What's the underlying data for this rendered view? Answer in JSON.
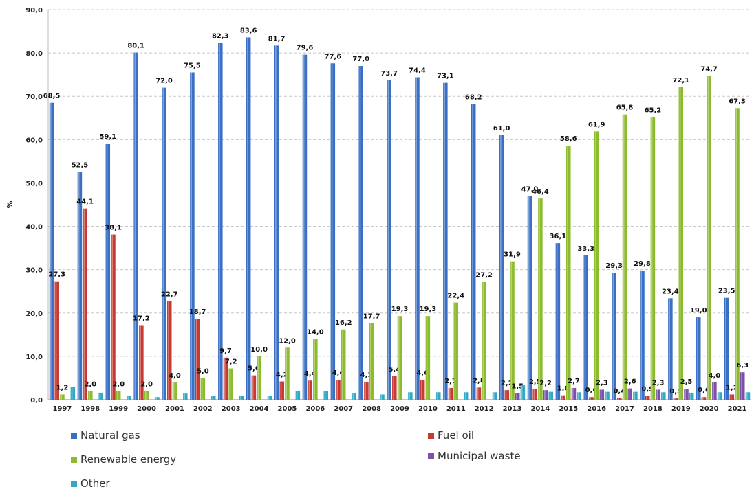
{
  "chart_data": {
    "type": "bar",
    "categories": [
      "1997",
      "1998",
      "1999",
      "2000",
      "2001",
      "2002",
      "2003",
      "2004",
      "2005",
      "2006",
      "2007",
      "2008",
      "2009",
      "2010",
      "2011",
      "2012",
      "2013",
      "2014",
      "2015",
      "2016",
      "2017",
      "2018",
      "2019",
      "2020",
      "2021"
    ],
    "series": [
      {
        "name": "Natural gas",
        "color": "#3a6fc4",
        "values": [
          68.5,
          52.5,
          59.1,
          80.1,
          72.0,
          75.5,
          82.3,
          83.6,
          81.7,
          79.6,
          77.6,
          77.0,
          73.7,
          74.4,
          73.1,
          68.2,
          61.0,
          47.0,
          36.1,
          33.3,
          29.3,
          29.8,
          23.4,
          19.0,
          23.5
        ],
        "labels": [
          "68,5",
          "52,5",
          "59,1",
          "80,1",
          "72,0",
          "75,5",
          "82,3",
          "83,6",
          "81,7",
          "79,6",
          "77,6",
          "77,0",
          "73,7",
          "74,4",
          "73,1",
          "68,2",
          "61,0",
          "47,0",
          "36,1",
          "33,3",
          "29,3",
          "29,8",
          "23,4",
          "19,0",
          "23,5"
        ]
      },
      {
        "name": "Fuel oil",
        "color": "#c63a32",
        "values": [
          27.3,
          44.1,
          38.1,
          17.2,
          22.7,
          18.7,
          9.7,
          5.6,
          4.2,
          4.4,
          4.6,
          4.1,
          5.4,
          4.6,
          2.7,
          2.8,
          2.2,
          2.5,
          1.0,
          0.6,
          0.4,
          0.9,
          0.3,
          0.6,
          1.2
        ],
        "labels": [
          "27,3",
          "44,1",
          "38,1",
          "17,2",
          "22,7",
          "18,7",
          "9,7",
          "5,6",
          "4,2",
          "4,4",
          "4,6",
          "4,1",
          "5,4",
          "4,6",
          "2,7",
          "2,8",
          "2,2",
          "2,5",
          "1,0",
          "0,6",
          "0,4",
          "0,9",
          "0,3",
          "0,6",
          "1,2"
        ]
      },
      {
        "name": "Renewable energy",
        "color": "#8dbb2e",
        "values": [
          1.2,
          2.0,
          2.0,
          2.0,
          4.0,
          5.0,
          7.2,
          10.0,
          12.0,
          14.0,
          16.2,
          17.7,
          19.3,
          19.3,
          22.4,
          27.2,
          31.9,
          46.4,
          58.6,
          61.9,
          65.8,
          65.2,
          72.1,
          74.7,
          67.3
        ],
        "labels": [
          "1,2",
          "2,0",
          "2,0",
          "2,0",
          "4,0",
          "5,0",
          "7,2",
          "10,0",
          "12,0",
          "14,0",
          "16,2",
          "17,7",
          "19,3",
          "19,3",
          "22,4",
          "27,2",
          "31,9",
          "46,4",
          "58,6",
          "61,9",
          "65,8",
          "65,2",
          "72,1",
          "74,7",
          "67,3"
        ]
      },
      {
        "name": "Municipal waste",
        "color": "#7d4fa8",
        "values": [
          0,
          0,
          0,
          0,
          0,
          0,
          0,
          0,
          0,
          0,
          0,
          0,
          0,
          0,
          0,
          0,
          1.5,
          2.2,
          2.7,
          2.3,
          2.6,
          2.3,
          2.5,
          4.0,
          6.3
        ],
        "labels": [
          "",
          "",
          "",
          "",
          "",
          "",
          "",
          "",
          "",
          "",
          "",
          "",
          "",
          "",
          "",
          "",
          "1,5",
          "2,2",
          "2,7",
          "2,3",
          "2,6",
          "2,3",
          "2,5",
          "4,0",
          "6,3"
        ]
      },
      {
        "name": "Other",
        "color": "#2fa9c6",
        "values": [
          3.0,
          1.6,
          0.8,
          0.6,
          1.4,
          0.8,
          0.8,
          0.8,
          2.0,
          2.0,
          1.5,
          1.2,
          1.7,
          1.7,
          1.7,
          1.7,
          3.3,
          1.8,
          1.7,
          1.8,
          1.8,
          1.7,
          1.6,
          1.7,
          1.7
        ],
        "labels": [
          "",
          "",
          "",
          "",
          "",
          "",
          "",
          "",
          "",
          "",
          "",
          "",
          "",
          "",
          "",
          "",
          "",
          "",
          "",
          "",
          "",
          "",
          "",
          "",
          ""
        ]
      }
    ],
    "ylabel": "%",
    "ylim": [
      0,
      90
    ],
    "yticks": [
      "0,0",
      "10,0",
      "20,0",
      "30,0",
      "40,0",
      "50,0",
      "60,0",
      "70,0",
      "80,0",
      "90,0"
    ],
    "grid": true,
    "legend_position": "bottom"
  }
}
